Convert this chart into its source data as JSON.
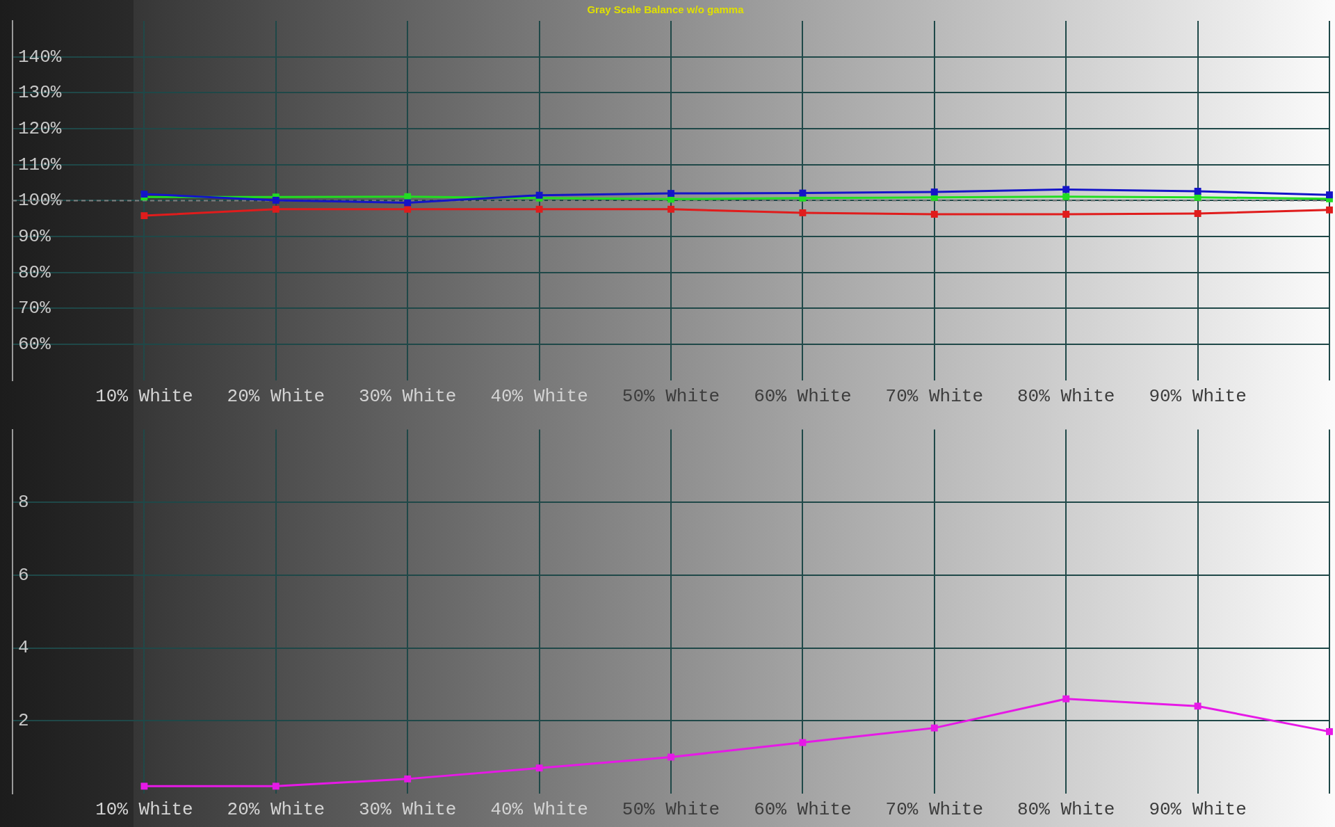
{
  "chart_data": [
    {
      "type": "line",
      "title": "Gray Scale Balance w/o gamma",
      "x": [
        10,
        20,
        30,
        40,
        50,
        60,
        70,
        80,
        90,
        100
      ],
      "series": [
        {
          "color": "#e01c1c",
          "values": [
            95.8,
            97.6,
            97.6,
            97.6,
            97.6,
            96.6,
            96.2,
            96.2,
            96.4,
            97.4
          ]
        },
        {
          "color": "#22dd22",
          "values": [
            101.0,
            101.0,
            101.1,
            100.7,
            100.4,
            100.7,
            100.9,
            101.1,
            100.9,
            100.5
          ]
        },
        {
          "color": "#1414c8",
          "values": [
            101.8,
            100.1,
            99.4,
            101.5,
            102.0,
            102.1,
            102.4,
            103.1,
            102.6,
            101.6
          ]
        }
      ],
      "xlim": [
        0,
        100
      ],
      "xticks": [
        {
          "value": 10,
          "label": "10% White"
        },
        {
          "value": 20,
          "label": "20% White"
        },
        {
          "value": 30,
          "label": "30% White"
        },
        {
          "value": 40,
          "label": "40% White"
        },
        {
          "value": 50,
          "label": "50% White"
        },
        {
          "value": 60,
          "label": "60% White"
        },
        {
          "value": 70,
          "label": "70% White"
        },
        {
          "value": 80,
          "label": "80% White"
        },
        {
          "value": 90,
          "label": "90% White"
        },
        {
          "value": 100,
          "label": null
        }
      ],
      "ylim": [
        50,
        150
      ],
      "yticks": [
        {
          "value": 60,
          "label": "60%"
        },
        {
          "value": 70,
          "label": "70%"
        },
        {
          "value": 80,
          "label": "80%"
        },
        {
          "value": 90,
          "label": "90%"
        },
        {
          "value": 100,
          "label": "100%"
        },
        {
          "value": 110,
          "label": "110%"
        },
        {
          "value": 120,
          "label": "120%"
        },
        {
          "value": 130,
          "label": "130%"
        },
        {
          "value": 140,
          "label": "140%"
        }
      ],
      "grid": true,
      "marker": "square",
      "line_style": "solid",
      "ref_lines": [
        {
          "axis": "y",
          "value": 100,
          "line_style": "dashed",
          "color": "#808080"
        }
      ]
    },
    {
      "type": "line",
      "x": [
        10,
        20,
        30,
        40,
        50,
        60,
        70,
        80,
        90,
        100
      ],
      "color": "#e619e6",
      "values": [
        0.2,
        0.2,
        0.4,
        0.7,
        1.0,
        1.4,
        1.8,
        2.6,
        2.4,
        1.7
      ],
      "xlim": [
        0,
        100
      ],
      "xticks": [
        {
          "value": 10,
          "label": "10% White"
        },
        {
          "value": 20,
          "label": "20% White"
        },
        {
          "value": 30,
          "label": "30% White"
        },
        {
          "value": 40,
          "label": "40% White"
        },
        {
          "value": 50,
          "label": "50% White"
        },
        {
          "value": 60,
          "label": "60% White"
        },
        {
          "value": 70,
          "label": "70% White"
        },
        {
          "value": 80,
          "label": "80% White"
        },
        {
          "value": 90,
          "label": "90% White"
        },
        {
          "value": 100,
          "label": null
        }
      ],
      "ylim": [
        0,
        10
      ],
      "yticks": [
        2,
        4,
        6,
        8
      ],
      "grid": true,
      "marker": "square",
      "line_style": "solid"
    }
  ]
}
